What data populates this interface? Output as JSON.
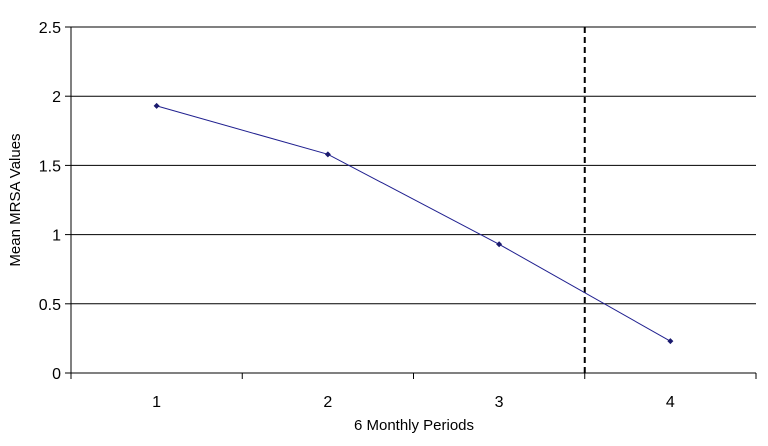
{
  "chart_data": {
    "type": "line",
    "xlabel": "6 Monthly Periods",
    "ylabel": "Mean MRSA Values",
    "x": [
      1,
      2,
      3,
      4
    ],
    "categories": [
      "1",
      "2",
      "3",
      "4"
    ],
    "series": [
      {
        "values": [
          1.93,
          1.58,
          0.93,
          0.23
        ]
      }
    ],
    "ylim": [
      0,
      2.5
    ],
    "yticks": [
      "0",
      "0.5",
      "1",
      "1.5",
      "2",
      "2.5"
    ],
    "grid": "horizontal",
    "reference_line": {
      "orientation": "vertical",
      "x": 3.5,
      "style": "dashed"
    },
    "colors": {
      "series": "#1f1f8f",
      "marker": "#1a1a6e",
      "grid": "#000000",
      "reference": "#000000"
    }
  }
}
